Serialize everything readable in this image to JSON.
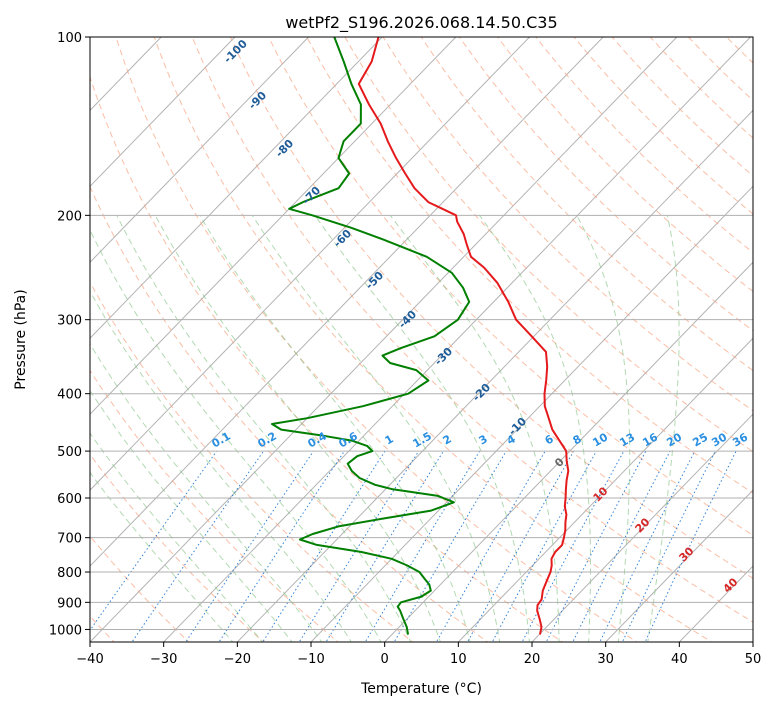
{
  "chart_data": {
    "type": "skew-t",
    "title": "wetPf2_S196.2026.068.14.50.C35",
    "xlabel": "Temperature (°C)",
    "ylabel": "Pressure (hPa)",
    "xlim": [
      -40,
      50
    ],
    "ylim": [
      1050,
      100
    ],
    "x_ticks": [
      -40,
      -30,
      -20,
      -10,
      0,
      10,
      20,
      30,
      40,
      50
    ],
    "x_tick_labels": [
      "−40",
      "−30",
      "−20",
      "−10",
      "0",
      "10",
      "20",
      "30",
      "40",
      "50"
    ],
    "y_ticks": [
      100,
      200,
      300,
      400,
      500,
      600,
      700,
      800,
      900,
      1000
    ],
    "y_tick_labels": [
      "100",
      "200",
      "300",
      "400",
      "500",
      "600",
      "700",
      "800",
      "900",
      "1000"
    ],
    "isotherm_labels": [
      {
        "value": -100,
        "label": "-100"
      },
      {
        "value": -90,
        "label": "-90"
      },
      {
        "value": -80,
        "label": "-80"
      },
      {
        "value": -70,
        "label": "-70"
      },
      {
        "value": -60,
        "label": "-60"
      },
      {
        "value": -50,
        "label": "-50"
      },
      {
        "value": -40,
        "label": "-40"
      },
      {
        "value": -30,
        "label": "-30"
      },
      {
        "value": -20,
        "label": "-20"
      },
      {
        "value": -10,
        "label": "-10"
      }
    ],
    "isotherm_labels_above_freezing": [
      {
        "value": 0,
        "label": "0"
      },
      {
        "value": 10,
        "label": "10"
      },
      {
        "value": 20,
        "label": "20"
      },
      {
        "value": 30,
        "label": "30"
      },
      {
        "value": 40,
        "label": "40"
      }
    ],
    "mixing_ratio_labels": [
      "0.1",
      "0.2",
      "0.4",
      "0.6",
      "1",
      "1.5",
      "2",
      "3",
      "4",
      "6",
      "8",
      "10",
      "13",
      "16",
      "20",
      "25",
      "30",
      "36"
    ],
    "mixing_ratio_values": [
      0.1,
      0.2,
      0.4,
      0.6,
      1,
      1.5,
      2,
      3,
      4,
      6,
      8,
      10,
      13,
      16,
      20,
      25,
      30,
      36
    ],
    "series": [
      {
        "name": "temperature",
        "color": "#e41a1c",
        "points": [
          [
            1020,
            20.1
          ],
          [
            990,
            19.3
          ],
          [
            960,
            18.0
          ],
          [
            930,
            16.6
          ],
          [
            910,
            15.9
          ],
          [
            890,
            15.7
          ],
          [
            860,
            14.7
          ],
          [
            830,
            14.0
          ],
          [
            800,
            13.3
          ],
          [
            780,
            12.6
          ],
          [
            760,
            11.7
          ],
          [
            740,
            11.3
          ],
          [
            720,
            11.3
          ],
          [
            700,
            10.6
          ],
          [
            680,
            9.8
          ],
          [
            660,
            8.8
          ],
          [
            640,
            7.9
          ],
          [
            620,
            6.6
          ],
          [
            600,
            5.6
          ],
          [
            580,
            4.5
          ],
          [
            560,
            3.4
          ],
          [
            540,
            2.4
          ],
          [
            520,
            0.9
          ],
          [
            500,
            -0.5
          ],
          [
            480,
            -2.8
          ],
          [
            460,
            -5.2
          ],
          [
            440,
            -7.2
          ],
          [
            420,
            -9.3
          ],
          [
            400,
            -11.0
          ],
          [
            380,
            -12.5
          ],
          [
            360,
            -14.2
          ],
          [
            340,
            -16.3
          ],
          [
            320,
            -20.3
          ],
          [
            300,
            -24.6
          ],
          [
            280,
            -28.0
          ],
          [
            260,
            -32.0
          ],
          [
            245,
            -35.8
          ],
          [
            235,
            -39.0
          ],
          [
            225,
            -41.0
          ],
          [
            215,
            -43.0
          ],
          [
            205,
            -45.5
          ],
          [
            200,
            -46.5
          ],
          [
            195,
            -49.2
          ],
          [
            190,
            -52.0
          ],
          [
            180,
            -55.7
          ],
          [
            170,
            -58.9
          ],
          [
            160,
            -62.2
          ],
          [
            150,
            -65.5
          ],
          [
            140,
            -68.8
          ],
          [
            130,
            -72.9
          ],
          [
            120,
            -77.0
          ],
          [
            110,
            -78.2
          ],
          [
            100,
            -80.5
          ]
        ]
      },
      {
        "name": "dewpoint",
        "color": "#007f00",
        "points": [
          [
            1020,
            2.2
          ],
          [
            990,
            1.0
          ],
          [
            960,
            -0.5
          ],
          [
            930,
            -2.0
          ],
          [
            915,
            -2.9
          ],
          [
            900,
            -3.0
          ],
          [
            880,
            -1.0
          ],
          [
            860,
            -0.5
          ],
          [
            840,
            -1.5
          ],
          [
            820,
            -3.0
          ],
          [
            800,
            -4.5
          ],
          [
            780,
            -7.0
          ],
          [
            760,
            -10.0
          ],
          [
            740,
            -15.0
          ],
          [
            720,
            -22.0
          ],
          [
            705,
            -25.0
          ],
          [
            690,
            -24.0
          ],
          [
            670,
            -21.5
          ],
          [
            650,
            -16.5
          ],
          [
            630,
            -11.0
          ],
          [
            610,
            -9.0
          ],
          [
            595,
            -12.0
          ],
          [
            580,
            -19.0
          ],
          [
            570,
            -22.0
          ],
          [
            555,
            -25.0
          ],
          [
            540,
            -27.0
          ],
          [
            525,
            -28.5
          ],
          [
            510,
            -28.2
          ],
          [
            500,
            -26.8
          ],
          [
            490,
            -28.2
          ],
          [
            480,
            -31.0
          ],
          [
            470,
            -36.0
          ],
          [
            460,
            -42.0
          ],
          [
            450,
            -44.0
          ],
          [
            440,
            -40.0
          ],
          [
            420,
            -34.0
          ],
          [
            400,
            -29.5
          ],
          [
            380,
            -28.5
          ],
          [
            365,
            -31.5
          ],
          [
            355,
            -36.0
          ],
          [
            345,
            -38.0
          ],
          [
            335,
            -36.5
          ],
          [
            320,
            -33.5
          ],
          [
            300,
            -32.5
          ],
          [
            280,
            -33.3
          ],
          [
            265,
            -36.0
          ],
          [
            250,
            -39.5
          ],
          [
            235,
            -45.0
          ],
          [
            220,
            -53.0
          ],
          [
            210,
            -59.0
          ],
          [
            200,
            -66.0
          ],
          [
            195,
            -70.0
          ],
          [
            190,
            -69.0
          ],
          [
            180,
            -66.0
          ],
          [
            170,
            -66.5
          ],
          [
            160,
            -70.0
          ],
          [
            150,
            -71.5
          ],
          [
            140,
            -71.5
          ],
          [
            130,
            -74.0
          ],
          [
            120,
            -78.0
          ],
          [
            110,
            -82.0
          ],
          [
            100,
            -86.5
          ]
        ]
      }
    ]
  }
}
